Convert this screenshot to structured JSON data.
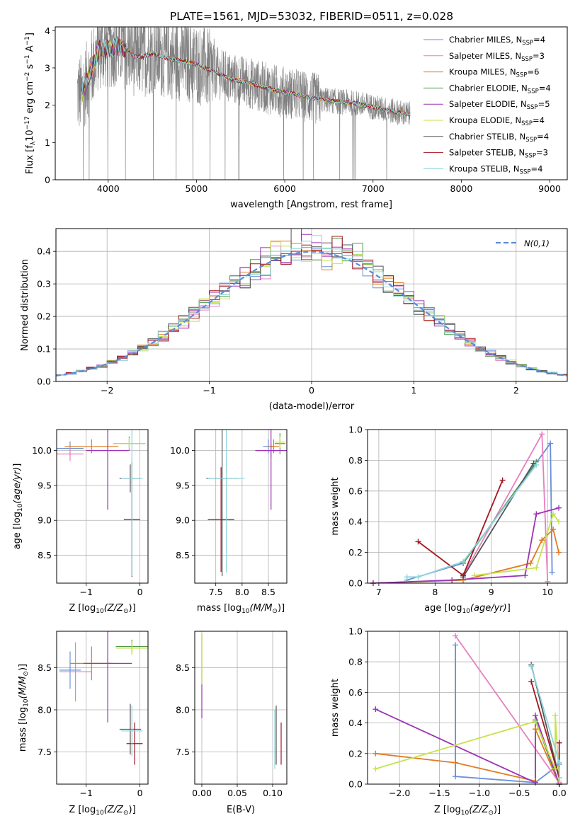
{
  "figure_title": "PLATE=1561, MJD=53032, FIBERID=0511, z=0.028",
  "colors": {
    "Chabrier MILES": "#6a8fd8",
    "Salpeter MILES": "#e77fc0",
    "Kroupa MILES": "#e07b22",
    "Chabrier ELODIE": "#4f9a4f",
    "Salpeter ELODIE": "#9b34b5",
    "Kroupa ELODIE": "#c6e24a",
    "Chabrier STELIB": "#555555",
    "Salpeter STELIB": "#a31621",
    "Kroupa STELIB": "#8dd5dd",
    "data": "#808080",
    "normal": "#5b8bd8"
  },
  "chart_data": [
    {
      "id": "spectrum",
      "type": "line",
      "xlabel": "wavelength [Angstrom, rest frame]",
      "ylabel": "Flux [f$_\\lambda$10$^{-17}$ erg cm$^{-2}$ s$^{-1}$ A$^{-1}$]",
      "xlim": [
        3400,
        9200
      ],
      "ylim": [
        0,
        4.1
      ],
      "xticks": [
        4000,
        5000,
        6000,
        7000,
        8000,
        9000
      ],
      "yticks": [
        0,
        1,
        2,
        3,
        4
      ],
      "legend_position": "top-right",
      "legend": [
        {
          "label": "Chabrier MILES, N",
          "sub": "SSP",
          "tail": "=4"
        },
        {
          "label": "Salpeter MILES, N",
          "sub": "SSP",
          "tail": "=3"
        },
        {
          "label": "Kroupa MILES, N",
          "sub": "SSP",
          "tail": "=6"
        },
        {
          "label": "Chabrier ELODIE, N",
          "sub": "SSP",
          "tail": "=4"
        },
        {
          "label": "Salpeter ELODIE, N",
          "sub": "SSP",
          "tail": "=5"
        },
        {
          "label": "Kroupa ELODIE, N",
          "sub": "SSP",
          "tail": "=4"
        },
        {
          "label": "Chabrier STELIB, N",
          "sub": "SSP",
          "tail": "=4"
        },
        {
          "label": "Salpeter STELIB, N",
          "sub": "SSP",
          "tail": "=3"
        },
        {
          "label": "Kroupa STELIB, N",
          "sub": "SSP",
          "tail": "=4"
        }
      ],
      "model_continuum": {
        "x": [
          3700,
          3800,
          3900,
          4000,
          4100,
          4200,
          4300,
          4400,
          4500,
          4600,
          4800,
          5000,
          5200,
          5400,
          5600,
          5800,
          6000,
          6200,
          6400,
          6600,
          6800,
          7000,
          7200,
          7400
        ],
        "y": [
          2.3,
          2.9,
          3.5,
          3.5,
          3.6,
          3.5,
          3.3,
          3.3,
          3.4,
          3.3,
          3.2,
          3.1,
          2.9,
          2.7,
          2.6,
          2.45,
          2.35,
          2.25,
          2.15,
          2.1,
          2.05,
          1.95,
          1.85,
          1.75
        ]
      },
      "data_range": [
        3650,
        7420
      ]
    },
    {
      "id": "residuals",
      "type": "histogram",
      "xlabel": "(data-model)/error",
      "ylabel": "Normed distribution",
      "xlim": [
        -2.5,
        2.5
      ],
      "ylim": [
        0,
        0.47
      ],
      "xticks": [
        -2,
        -1,
        0,
        1,
        2
      ],
      "yticks": [
        0.0,
        0.1,
        0.2,
        0.3,
        0.4
      ],
      "legend_position": "top-right",
      "normal_label": "N(0,1)",
      "bin_width": 0.1
    },
    {
      "id": "age_vs_Z",
      "type": "errorbar",
      "xlabel": "Z [log10(Z/Zsun)]",
      "ylabel": "age [log10(age/yr)]",
      "xlim": [
        -1.55,
        0.15
      ],
      "ylim": [
        8.1,
        10.3
      ],
      "xticks": [
        -1,
        0
      ],
      "yticks": [
        8.5,
        9.0,
        9.5,
        10.0
      ],
      "points": [
        {
          "model": "Chabrier MILES",
          "x": -1.3,
          "y": 10.03,
          "xerr": 0.25,
          "yerr": 0.1
        },
        {
          "model": "Salpeter MILES",
          "x": -1.3,
          "y": 9.95,
          "xerr": 0.25,
          "yerr": 0.1
        },
        {
          "model": "Kroupa MILES",
          "x": -0.9,
          "y": 10.06,
          "xerr": 0.5,
          "yerr": 0.1
        },
        {
          "model": "Chabrier ELODIE",
          "x": -0.2,
          "y": 10.1,
          "xerr": 0.3,
          "yerr": 0.1
        },
        {
          "model": "Salpeter ELODIE",
          "x": -0.6,
          "y": 10.0,
          "xerr": 0.4,
          "yerr": 0.85
        },
        {
          "model": "Kroupa ELODIE",
          "x": -0.2,
          "y": 10.1,
          "xerr": 0.3,
          "yerr": 0.08
        },
        {
          "model": "Chabrier STELIB",
          "x": -0.18,
          "y": 9.6,
          "xerr": 0.2,
          "yerr": 0.2
        },
        {
          "model": "Salpeter STELIB",
          "x": -0.15,
          "y": 9.01,
          "xerr": 0.15,
          "yerr": 0.82
        },
        {
          "model": "Kroupa STELIB",
          "x": -0.15,
          "y": 9.6,
          "xerr": 0.2,
          "yerr": 1.4
        }
      ]
    },
    {
      "id": "age_vs_mass",
      "type": "errorbar",
      "xlabel": "mass [log10(M/Msun)]",
      "ylabel": "",
      "xlim": [
        7.1,
        8.85
      ],
      "ylim": [
        8.1,
        10.3
      ],
      "xticks": [
        7.5,
        8.0,
        8.5
      ],
      "yticks": [
        8.5,
        9.0,
        9.5,
        10.0
      ],
      "points": [
        {
          "model": "Chabrier MILES",
          "x": 8.5,
          "y": 10.06,
          "xerr": 0.1,
          "yerr": 0.1
        },
        {
          "model": "Salpeter MILES",
          "x": 8.55,
          "y": 10.0,
          "xerr": 0.15,
          "yerr": 0.1
        },
        {
          "model": "Kroupa MILES",
          "x": 8.6,
          "y": 10.06,
          "xerr": 0.1,
          "yerr": 0.1
        },
        {
          "model": "Chabrier ELODIE",
          "x": 8.72,
          "y": 10.1,
          "xerr": 0.1,
          "yerr": 0.15
        },
        {
          "model": "Salpeter ELODIE",
          "x": 8.55,
          "y": 10.0,
          "xerr": 0.3,
          "yerr": 0.85
        },
        {
          "model": "Kroupa ELODIE",
          "x": 8.72,
          "y": 10.12,
          "xerr": 0.1,
          "yerr": 0.08
        },
        {
          "model": "Chabrier STELIB",
          "x": 7.62,
          "y": 9.6,
          "xerr": 0.3,
          "yerr": 1.4
        },
        {
          "model": "Salpeter STELIB",
          "x": 7.6,
          "y": 9.01,
          "xerr": 0.25,
          "yerr": 0.75
        },
        {
          "model": "Kroupa STELIB",
          "x": 7.7,
          "y": 9.6,
          "xerr": 0.35,
          "yerr": 1.35
        }
      ]
    },
    {
      "id": "massweight_vs_age",
      "type": "line",
      "xlabel": "age [log10(age/yr)]",
      "ylabel": "mass weight",
      "xlim": [
        6.8,
        10.35
      ],
      "ylim": [
        0,
        1.0
      ],
      "xticks": [
        7,
        8,
        9,
        10
      ],
      "yticks": [
        0.0,
        0.2,
        0.4,
        0.6,
        0.8,
        1.0
      ],
      "series": [
        {
          "model": "Chabrier MILES",
          "x": [
            7.5,
            8.5,
            10.05,
            10.08
          ],
          "y": [
            0.02,
            0.13,
            0.91,
            0.07
          ]
        },
        {
          "model": "Salpeter MILES",
          "x": [
            8.5,
            9.9,
            10.0
          ],
          "y": [
            0.05,
            0.97,
            0.01
          ]
        },
        {
          "model": "Kroupa MILES",
          "x": [
            6.9,
            8.5,
            9.7,
            9.9,
            10.1,
            10.2
          ],
          "y": [
            0.0,
            0.02,
            0.13,
            0.28,
            0.35,
            0.2
          ]
        },
        {
          "model": "Chabrier ELODIE",
          "x": [
            8.5,
            9.8
          ],
          "y": [
            0.13,
            0.79
          ]
        },
        {
          "model": "Salpeter ELODIE",
          "x": [
            6.9,
            8.3,
            9.6,
            9.8,
            10.2
          ],
          "y": [
            0.0,
            0.02,
            0.05,
            0.45,
            0.49
          ]
        },
        {
          "model": "Kroupa ELODIE",
          "x": [
            8.7,
            9.8,
            10.1,
            10.2
          ],
          "y": [
            0.05,
            0.1,
            0.45,
            0.4
          ]
        },
        {
          "model": "Chabrier STELIB",
          "x": [
            8.5,
            9.75
          ],
          "y": [
            0.04,
            0.78
          ]
        },
        {
          "model": "Salpeter STELIB",
          "x": [
            7.7,
            8.5,
            9.2
          ],
          "y": [
            0.27,
            0.05,
            0.67
          ]
        },
        {
          "model": "Kroupa STELIB",
          "x": [
            7.5,
            7.7,
            8.5,
            9.8
          ],
          "y": [
            0.04,
            0.04,
            0.14,
            0.77
          ]
        }
      ]
    },
    {
      "id": "mass_vs_Z",
      "type": "errorbar",
      "xlabel": "Z [log10(Z/Zsun)]",
      "ylabel": "mass [log10(M/Msun)]",
      "xlim": [
        -1.55,
        0.15
      ],
      "ylim": [
        7.12,
        8.93
      ],
      "xticks": [
        -1,
        0
      ],
      "yticks": [
        7.5,
        8.0,
        8.5
      ],
      "points": [
        {
          "model": "Chabrier MILES",
          "x": -1.3,
          "y": 8.47,
          "xerr": 0.2,
          "yerr": 0.22
        },
        {
          "model": "Salpeter MILES",
          "x": -1.2,
          "y": 8.45,
          "xerr": 0.3,
          "yerr": 0.35
        },
        {
          "model": "Kroupa MILES",
          "x": -0.9,
          "y": 8.55,
          "xerr": 0.4,
          "yerr": 0.2
        },
        {
          "model": "Chabrier ELODIE",
          "x": -0.15,
          "y": 8.75,
          "xerr": 0.3,
          "yerr": 0.08
        },
        {
          "model": "Salpeter ELODIE",
          "x": -0.6,
          "y": 8.55,
          "xerr": 0.45,
          "yerr": 0.7
        },
        {
          "model": "Kroupa ELODIE",
          "x": -0.15,
          "y": 8.73,
          "xerr": 0.3,
          "yerr": 0.08
        },
        {
          "model": "Chabrier STELIB",
          "x": -0.18,
          "y": 7.77,
          "xerr": 0.2,
          "yerr": 0.3
        },
        {
          "model": "Salpeter STELIB",
          "x": -0.1,
          "y": 7.6,
          "xerr": 0.15,
          "yerr": 0.25
        },
        {
          "model": "Kroupa STELIB",
          "x": -0.15,
          "y": 7.75,
          "xerr": 0.2,
          "yerr": 0.3
        }
      ]
    },
    {
      "id": "mass_vs_EBV",
      "type": "errorbar",
      "xlabel": "E(B-V)",
      "ylabel": "",
      "xlim": [
        -0.01,
        0.12
      ],
      "ylim": [
        7.12,
        8.93
      ],
      "xticks": [
        0.0,
        0.05,
        0.1
      ],
      "xticklabels": [
        "0.00",
        "0.05",
        "0.10"
      ],
      "yticks": [
        7.5,
        8.0,
        8.5
      ],
      "points": [
        {
          "model": "Salpeter ELODIE",
          "x": 0.0,
          "y": 8.4,
          "xerr": 0.0,
          "yerr": 0.5
        },
        {
          "model": "Kroupa ELODIE",
          "x": 0.0,
          "y": 8.6,
          "xerr": 0.0,
          "yerr": 0.3
        },
        {
          "model": "Chabrier STELIB",
          "x": 0.105,
          "y": 7.7,
          "xerr": 0.0,
          "yerr": 0.35
        },
        {
          "model": "Kroupa STELIB",
          "x": 0.103,
          "y": 7.65,
          "xerr": 0.0,
          "yerr": 0.35
        },
        {
          "model": "Salpeter STELIB",
          "x": 0.112,
          "y": 7.6,
          "xerr": 0.0,
          "yerr": 0.25
        }
      ]
    },
    {
      "id": "massweight_vs_Z",
      "type": "line",
      "xlabel": "Z [log10(Z/Zsun)]",
      "ylabel": "mass weight",
      "xlim": [
        -2.4,
        0.1
      ],
      "ylim": [
        0,
        1.0
      ],
      "xticks": [
        -2.0,
        -1.5,
        -1.0,
        -0.5,
        0.0
      ],
      "yticks": [
        0.0,
        0.2,
        0.4,
        0.6,
        0.8,
        1.0
      ],
      "series": [
        {
          "model": "Chabrier MILES",
          "x": [
            -1.3,
            -1.3,
            -0.3,
            0.0
          ],
          "y": [
            0.91,
            0.05,
            0.01,
            0.13
          ]
        },
        {
          "model": "Salpeter MILES",
          "x": [
            -1.3,
            0.0
          ],
          "y": [
            0.97,
            0.01
          ]
        },
        {
          "model": "Kroupa MILES",
          "x": [
            -2.3,
            -1.3,
            -0.3,
            -0.3,
            0.0
          ],
          "y": [
            0.2,
            0.14,
            0.02,
            0.36,
            0.0
          ]
        },
        {
          "model": "Chabrier ELODIE",
          "x": [
            -0.3,
            0.0
          ],
          "y": [
            0.42,
            0.0
          ]
        },
        {
          "model": "Salpeter ELODIE",
          "x": [
            -2.3,
            -0.3,
            -0.3,
            0.0
          ],
          "y": [
            0.49,
            0.01,
            0.45,
            0.0
          ]
        },
        {
          "model": "Kroupa ELODIE",
          "x": [
            -2.3,
            -0.3,
            -0.05,
            -0.05,
            0.0
          ],
          "y": [
            0.1,
            0.41,
            0.1,
            0.45,
            0.02
          ]
        },
        {
          "model": "Chabrier STELIB",
          "x": [
            -0.35,
            0.0
          ],
          "y": [
            0.78,
            0.04
          ]
        },
        {
          "model": "Salpeter STELIB",
          "x": [
            -0.35,
            0.0,
            0.0
          ],
          "y": [
            0.67,
            0.04,
            0.27
          ]
        },
        {
          "model": "Kroupa STELIB",
          "x": [
            -0.35,
            0.0,
            0.0
          ],
          "y": [
            0.77,
            0.14,
            0.04
          ]
        }
      ]
    }
  ]
}
